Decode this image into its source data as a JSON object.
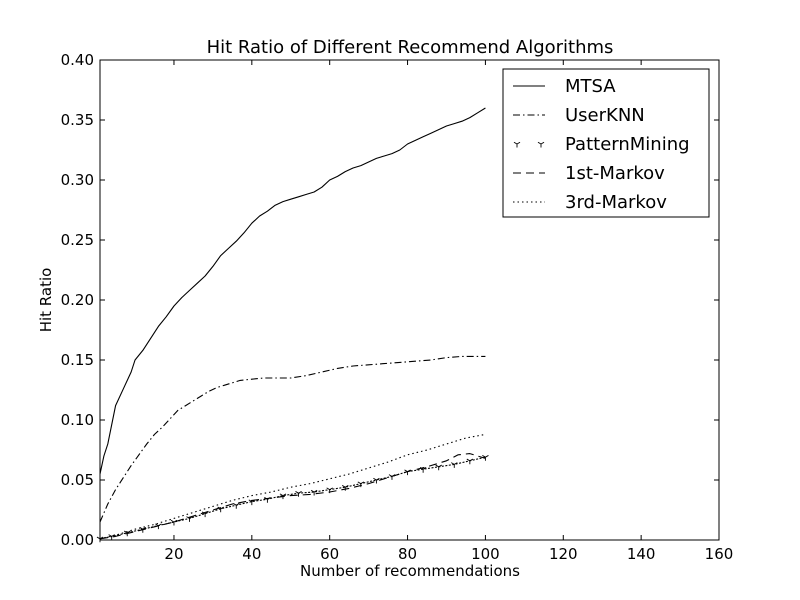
{
  "chart_data": {
    "type": "line",
    "title": "Hit Ratio of Different Recommend Algorithms",
    "xlabel": "Number of recommendations",
    "ylabel": "Hit Ratio",
    "xlim": [
      1,
      160
    ],
    "ylim": [
      0.0,
      0.4
    ],
    "x_ticks": [
      20,
      40,
      60,
      80,
      100,
      120,
      140,
      160
    ],
    "x_tick_labels": [
      "20",
      "40",
      "60",
      "80",
      "100",
      "120",
      "140",
      "160"
    ],
    "y_ticks": [
      0.0,
      0.05,
      0.1,
      0.15,
      0.2,
      0.25,
      0.3,
      0.35,
      0.4
    ],
    "y_tick_labels": [
      "0.00",
      "0.05",
      "0.10",
      "0.15",
      "0.20",
      "0.25",
      "0.30",
      "0.35",
      "0.40"
    ],
    "grid": false,
    "legend_position": "top-right",
    "series": [
      {
        "name": "MTSA",
        "style": "solid",
        "x": [
          1,
          2,
          3,
          5,
          7,
          9,
          10,
          12,
          14,
          16,
          18,
          20,
          22,
          24,
          26,
          28,
          30,
          32,
          34,
          36,
          38,
          40,
          42,
          44,
          46,
          48,
          50,
          52,
          54,
          56,
          58,
          60,
          62,
          64,
          66,
          68,
          70,
          72,
          74,
          76,
          78,
          80,
          82,
          84,
          86,
          88,
          90,
          92,
          94,
          96,
          98,
          100
        ],
        "y": [
          0.055,
          0.07,
          0.08,
          0.112,
          0.126,
          0.14,
          0.15,
          0.158,
          0.168,
          0.178,
          0.186,
          0.195,
          0.202,
          0.208,
          0.214,
          0.22,
          0.228,
          0.237,
          0.243,
          0.249,
          0.256,
          0.264,
          0.27,
          0.274,
          0.279,
          0.282,
          0.284,
          0.286,
          0.288,
          0.29,
          0.294,
          0.3,
          0.303,
          0.307,
          0.31,
          0.312,
          0.315,
          0.318,
          0.32,
          0.322,
          0.325,
          0.33,
          0.333,
          0.336,
          0.339,
          0.342,
          0.345,
          0.347,
          0.349,
          0.352,
          0.356,
          0.36
        ]
      },
      {
        "name": "UserKNN",
        "style": "dashdot",
        "x": [
          1,
          3,
          5,
          7,
          9,
          11,
          13,
          15,
          17,
          19,
          21,
          23,
          25,
          27,
          29,
          31,
          33,
          35,
          37,
          40,
          43,
          46,
          50,
          54,
          58,
          62,
          66,
          70,
          74,
          78,
          82,
          86,
          90,
          94,
          98,
          100
        ],
        "y": [
          0.015,
          0.03,
          0.042,
          0.052,
          0.062,
          0.071,
          0.08,
          0.088,
          0.094,
          0.101,
          0.108,
          0.112,
          0.116,
          0.12,
          0.124,
          0.127,
          0.129,
          0.131,
          0.133,
          0.134,
          0.135,
          0.135,
          0.135,
          0.137,
          0.14,
          0.143,
          0.145,
          0.146,
          0.147,
          0.148,
          0.149,
          0.15,
          0.152,
          0.153,
          0.153,
          0.153
        ]
      },
      {
        "name": "PatternMining",
        "style": "tri-marker",
        "x": [
          1,
          4,
          8,
          12,
          16,
          20,
          24,
          28,
          32,
          36,
          40,
          44,
          48,
          52,
          56,
          60,
          64,
          68,
          72,
          76,
          80,
          84,
          88,
          92,
          96,
          100
        ],
        "y": [
          0.001,
          0.003,
          0.006,
          0.009,
          0.012,
          0.015,
          0.018,
          0.022,
          0.026,
          0.029,
          0.032,
          0.034,
          0.037,
          0.039,
          0.04,
          0.042,
          0.044,
          0.047,
          0.05,
          0.053,
          0.057,
          0.059,
          0.061,
          0.063,
          0.066,
          0.069
        ]
      },
      {
        "name": "1st-Markov",
        "style": "dashed",
        "x": [
          1,
          5,
          10,
          15,
          20,
          25,
          30,
          35,
          40,
          45,
          50,
          55,
          60,
          65,
          70,
          75,
          80,
          85,
          90,
          93,
          96,
          100
        ],
        "y": [
          0.001,
          0.003,
          0.007,
          0.011,
          0.015,
          0.02,
          0.025,
          0.03,
          0.033,
          0.035,
          0.037,
          0.038,
          0.04,
          0.043,
          0.047,
          0.052,
          0.057,
          0.061,
          0.066,
          0.071,
          0.072,
          0.068
        ]
      },
      {
        "name": "3rd-Markov",
        "style": "dotted",
        "x": [
          1,
          5,
          10,
          15,
          20,
          25,
          30,
          35,
          40,
          45,
          50,
          55,
          60,
          65,
          70,
          75,
          80,
          85,
          90,
          95,
          100
        ],
        "y": [
          0.001,
          0.004,
          0.009,
          0.013,
          0.018,
          0.023,
          0.028,
          0.033,
          0.037,
          0.04,
          0.044,
          0.047,
          0.051,
          0.055,
          0.06,
          0.065,
          0.071,
          0.075,
          0.08,
          0.085,
          0.088
        ]
      }
    ]
  }
}
